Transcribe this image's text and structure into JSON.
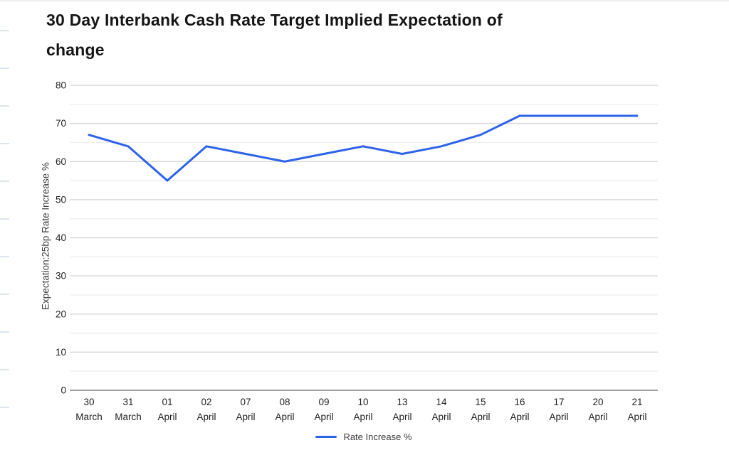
{
  "page": {
    "title": "30 Day Interbank Cash Rate Target Implied Expectation of change"
  },
  "chart_data": {
    "type": "line",
    "title": "30 Day Interbank Cash Rate Target Implied Expectation of change",
    "xlabel": "",
    "ylabel": "Expectation:25bp Rate Increase %",
    "categories": [
      "30 March",
      "31 March",
      "01 April",
      "02 April",
      "07 April",
      "08 April",
      "09 April",
      "10 April",
      "13 April",
      "14 April",
      "15 April",
      "16 April",
      "17 April",
      "20 April",
      "21 April"
    ],
    "series": [
      {
        "name": "Rate Increase %",
        "values": [
          67,
          64,
          55,
          64,
          62,
          60,
          62,
          64,
          62,
          64,
          67,
          72,
          72,
          72,
          72
        ]
      }
    ],
    "ylim": [
      0,
      80
    ],
    "ytick_step": 10,
    "minor_ytick_step": 5,
    "yticks": [
      0,
      10,
      20,
      30,
      40,
      50,
      60,
      70,
      80
    ],
    "grid": true,
    "legend_position": "bottom",
    "colors": {
      "line": "#2e63ea",
      "major_grid": "#d9d9d9",
      "minor_grid": "#efefef",
      "axis": "#9e9e9e",
      "tick_text": "#212121"
    }
  }
}
